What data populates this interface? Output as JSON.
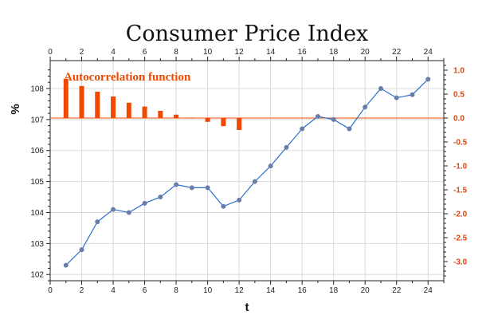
{
  "chart_data": {
    "type": "line",
    "title": "Consumer Price Index",
    "xlabel": "t",
    "ylabel": "%",
    "xlim": [
      0,
      25
    ],
    "ylim": [
      101.8,
      108.9
    ],
    "x_ticks": [
      "0",
      "2",
      "4",
      "6",
      "8",
      "10",
      "12",
      "14",
      "16",
      "18",
      "20",
      "22",
      "24"
    ],
    "y_ticks": [
      "102",
      "103",
      "104",
      "105",
      "106",
      "107",
      "108"
    ],
    "grid": true,
    "series": [
      {
        "x": [
          1,
          2,
          3,
          4,
          5,
          6,
          7,
          8,
          9,
          10,
          11,
          12,
          13,
          14,
          15,
          16,
          17,
          18,
          19,
          20,
          21,
          22,
          23,
          24
        ],
        "values": [
          102.3,
          102.8,
          103.7,
          104.1,
          104.0,
          104.3,
          104.5,
          104.9,
          104.8,
          104.8,
          104.2,
          104.4,
          105.0,
          105.5,
          106.1,
          106.7,
          107.1,
          107.0,
          106.7,
          107.4,
          108.0,
          107.7,
          107.8,
          108.3
        ],
        "color": "#2e6fcc",
        "marker_color": "#6a7ca8"
      }
    ],
    "secondary": {
      "label": "Autocorrelation function",
      "type": "bar",
      "axis": "right",
      "ylim": [
        -3.4,
        1.2
      ],
      "y_ticks": [
        "1.0",
        "0.5",
        "0.0",
        "-0.5",
        "-1.0",
        "-1.5",
        "-2.0",
        "-2.5",
        "-3.0"
      ],
      "lags": [
        1,
        2,
        3,
        4,
        5,
        6,
        7,
        8,
        9,
        10,
        11,
        12
      ],
      "values": [
        0.82,
        0.67,
        0.55,
        0.45,
        0.32,
        0.24,
        0.15,
        0.07,
        0.01,
        -0.08,
        -0.17,
        -0.25
      ],
      "color": "#f04a00"
    }
  }
}
